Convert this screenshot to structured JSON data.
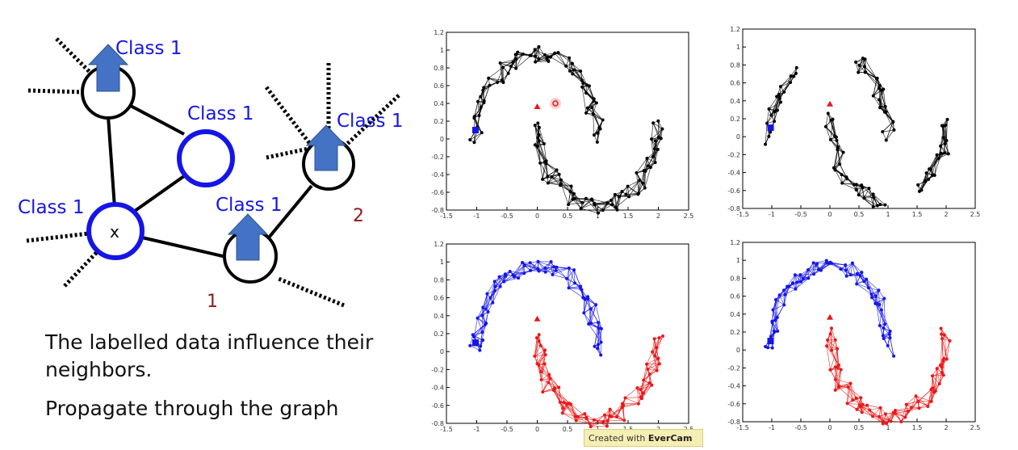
{
  "graph": {
    "node_labels": {
      "top": "Class 1",
      "middle": "Class 1",
      "right": "Class 1",
      "left": "Class 1",
      "bottom_mid": "Class 1"
    },
    "center_node_text": "x",
    "number_1": "1",
    "number_2": "2"
  },
  "caption": {
    "line1": "The labelled data influence their",
    "line2": "neighbors.",
    "line3": "Propagate through the graph"
  },
  "plots": {
    "y_ticks": [
      "1.2",
      "1",
      "0.8",
      "0.6",
      "0.4",
      "0.2",
      "0",
      "-0.2",
      "-0.4",
      "-0.6",
      "-0.8"
    ],
    "x_ticks": [
      "-1.5",
      "-1",
      "-0.5",
      "0",
      "0.5",
      "1",
      "1.5",
      "2",
      "2.5"
    ],
    "xlim": [
      -1.5,
      2.5
    ],
    "ylim": [
      -0.8,
      1.2
    ]
  },
  "watermark": {
    "prefix": "Created with ",
    "brand": "EverCam"
  },
  "colors": {
    "class_blue": "#1515e6",
    "arrow_blue": "#4472c4",
    "class_red": "#e81818",
    "number_color": "#8b1a1a"
  }
}
